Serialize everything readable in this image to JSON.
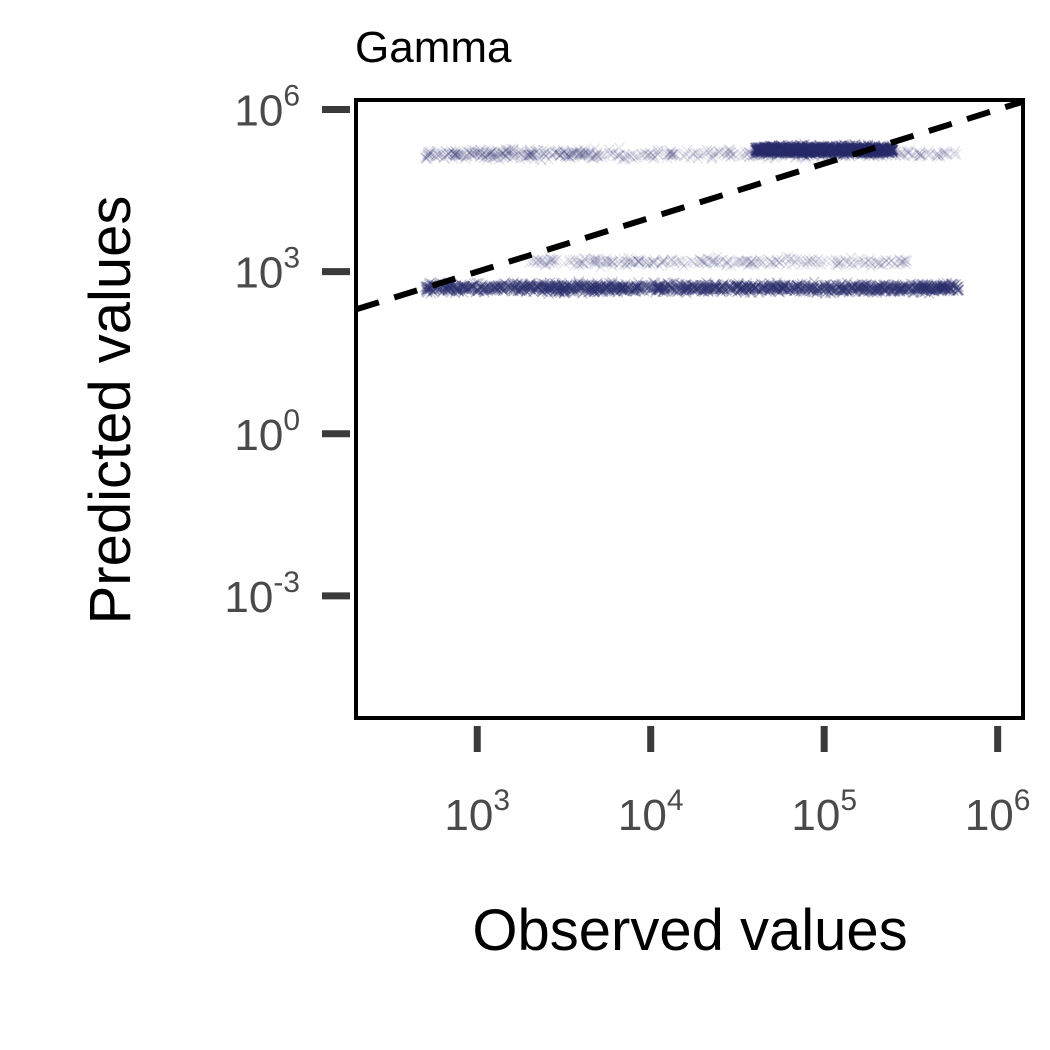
{
  "chart_data": {
    "type": "scatter",
    "title": "Gamma",
    "xlabel": "Observed values",
    "ylabel": "Predicted values",
    "x_scale": "log",
    "y_scale": "log",
    "xlim": [
      200,
      1400000
    ],
    "ylim": [
      5.5e-06,
      1500000
    ],
    "x_ticks": [
      {
        "value": 1000,
        "base": "10",
        "exp": "3"
      },
      {
        "value": 10000,
        "base": "10",
        "exp": "4"
      },
      {
        "value": 100000,
        "base": "10",
        "exp": "5"
      },
      {
        "value": 1000000,
        "base": "10",
        "exp": "6"
      }
    ],
    "y_ticks": [
      {
        "value": 0.001,
        "base": "10",
        "exp": "-3"
      },
      {
        "value": 1,
        "base": "10",
        "exp": "0"
      },
      {
        "value": 1000,
        "base": "10",
        "exp": "3"
      },
      {
        "value": 1000000,
        "base": "10",
        "exp": "6"
      }
    ],
    "reference_line": {
      "style": "dashed",
      "color": "#000000",
      "x": [
        200,
        1400000
      ],
      "y": [
        200,
        1400000
      ]
    },
    "marker": "x",
    "marker_color": "#2b2d6a",
    "grid": false,
    "clusters": [
      {
        "x_range": [
          500,
          600000
        ],
        "y_center": 500,
        "y_spread": 0.08,
        "density": "high"
      },
      {
        "x_range": [
          2000,
          300000
        ],
        "y_center": 1500,
        "y_spread": 0.07,
        "density": "low"
      },
      {
        "x_range": [
          500,
          5000
        ],
        "y_center": 150000,
        "y_spread": 0.09,
        "density": "low"
      },
      {
        "x_range": [
          40000,
          250000
        ],
        "y_center": 180000,
        "y_spread": 0.07,
        "density": "high"
      },
      {
        "x_range": [
          5000,
          600000
        ],
        "y_center": 150000,
        "y_spread": 0.08,
        "density": "low"
      }
    ]
  }
}
